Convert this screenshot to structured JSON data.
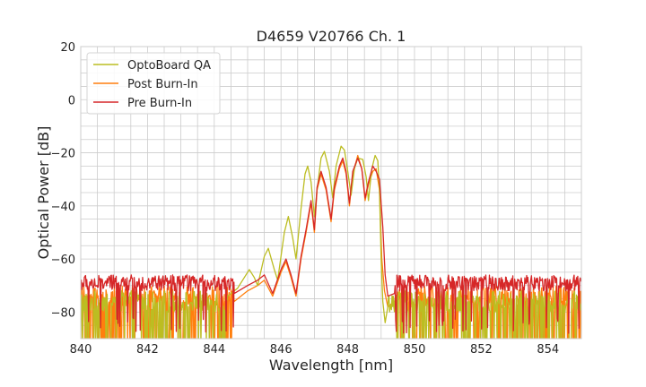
{
  "chart_data": {
    "type": "line",
    "title": "D4659 V20766 Ch. 1",
    "xlabel": "Wavelength [nm]",
    "ylabel": "Optical Power [dB]",
    "xlim": [
      840,
      855
    ],
    "ylim": [
      -90,
      20
    ],
    "xticks": [
      840,
      842,
      844,
      846,
      848,
      850,
      852,
      854
    ],
    "yticks": [
      20,
      0,
      -20,
      -40,
      -60,
      -80
    ],
    "x_minor_step": 0.5,
    "y_minor_step": 5,
    "grid": true,
    "legend_position": "top-left",
    "noise_floor_db": -80,
    "series": [
      {
        "name": "OptoBoard QA",
        "color": "#bcbd22",
        "noise_range": [
          844.4,
          849.2
        ],
        "points": [
          [
            844.4,
            -74
          ],
          [
            844.7,
            -71
          ],
          [
            844.9,
            -67
          ],
          [
            845.05,
            -64
          ],
          [
            845.2,
            -67
          ],
          [
            845.3,
            -70
          ],
          [
            845.5,
            -59
          ],
          [
            845.62,
            -56
          ],
          [
            845.8,
            -64
          ],
          [
            845.9,
            -68
          ],
          [
            846.1,
            -50
          ],
          [
            846.22,
            -44
          ],
          [
            846.35,
            -52
          ],
          [
            846.45,
            -60
          ],
          [
            846.6,
            -41
          ],
          [
            846.72,
            -28
          ],
          [
            846.8,
            -25
          ],
          [
            846.9,
            -31
          ],
          [
            847.0,
            -44
          ],
          [
            847.08,
            -34
          ],
          [
            847.2,
            -22
          ],
          [
            847.3,
            -19.5
          ],
          [
            847.45,
            -27
          ],
          [
            847.55,
            -37
          ],
          [
            847.65,
            -25
          ],
          [
            847.8,
            -17.5
          ],
          [
            847.9,
            -19
          ],
          [
            848.0,
            -27
          ],
          [
            848.1,
            -36
          ],
          [
            848.2,
            -26
          ],
          [
            848.3,
            -22
          ],
          [
            848.45,
            -22.5
          ],
          [
            848.55,
            -29
          ],
          [
            848.62,
            -38
          ],
          [
            848.72,
            -26
          ],
          [
            848.82,
            -21
          ],
          [
            848.9,
            -23
          ],
          [
            848.95,
            -34
          ],
          [
            849.0,
            -60
          ],
          [
            849.05,
            -76
          ],
          [
            849.12,
            -84
          ],
          [
            849.2,
            -78
          ]
        ]
      },
      {
        "name": "Post Burn-In",
        "color": "#ff7f0e",
        "noise_range": [
          844.6,
          849.4
        ],
        "points": [
          [
            844.6,
            -76
          ],
          [
            845.0,
            -72
          ],
          [
            845.3,
            -70
          ],
          [
            845.5,
            -68
          ],
          [
            845.75,
            -74
          ],
          [
            846.0,
            -65
          ],
          [
            846.15,
            -61
          ],
          [
            846.3,
            -67
          ],
          [
            846.45,
            -74
          ],
          [
            846.6,
            -60
          ],
          [
            846.75,
            -50
          ],
          [
            846.9,
            -39
          ],
          [
            847.0,
            -50
          ],
          [
            847.08,
            -34
          ],
          [
            847.2,
            -28
          ],
          [
            847.35,
            -34
          ],
          [
            847.5,
            -46
          ],
          [
            847.6,
            -34
          ],
          [
            847.75,
            -26
          ],
          [
            847.85,
            -23
          ],
          [
            847.95,
            -28
          ],
          [
            848.05,
            -40
          ],
          [
            848.15,
            -28
          ],
          [
            848.3,
            -21
          ],
          [
            848.42,
            -26
          ],
          [
            848.52,
            -38
          ],
          [
            848.62,
            -32
          ],
          [
            848.75,
            -27
          ],
          [
            848.85,
            -26
          ],
          [
            848.95,
            -34
          ],
          [
            849.02,
            -60
          ],
          [
            849.1,
            -72
          ],
          [
            849.2,
            -78
          ],
          [
            849.4,
            -76
          ]
        ]
      },
      {
        "name": "Pre Burn-In",
        "color": "#d62728",
        "noise_range": [
          844.6,
          849.4
        ],
        "points": [
          [
            844.6,
            -73
          ],
          [
            845.0,
            -70
          ],
          [
            845.3,
            -68
          ],
          [
            845.5,
            -66
          ],
          [
            845.75,
            -73
          ],
          [
            846.0,
            -64
          ],
          [
            846.15,
            -60
          ],
          [
            846.3,
            -66
          ],
          [
            846.45,
            -73
          ],
          [
            846.6,
            -59
          ],
          [
            846.75,
            -49
          ],
          [
            846.9,
            -38
          ],
          [
            847.0,
            -49
          ],
          [
            847.08,
            -33
          ],
          [
            847.2,
            -27
          ],
          [
            847.35,
            -33
          ],
          [
            847.5,
            -45
          ],
          [
            847.6,
            -33
          ],
          [
            847.75,
            -25
          ],
          [
            847.85,
            -22
          ],
          [
            847.95,
            -27
          ],
          [
            848.05,
            -39
          ],
          [
            848.15,
            -27
          ],
          [
            848.3,
            -22
          ],
          [
            848.42,
            -26
          ],
          [
            848.52,
            -37
          ],
          [
            848.62,
            -31
          ],
          [
            848.75,
            -25
          ],
          [
            848.85,
            -27
          ],
          [
            848.95,
            -30
          ],
          [
            849.05,
            -48
          ],
          [
            849.12,
            -66
          ],
          [
            849.2,
            -74
          ],
          [
            849.4,
            -73
          ]
        ]
      }
    ]
  }
}
